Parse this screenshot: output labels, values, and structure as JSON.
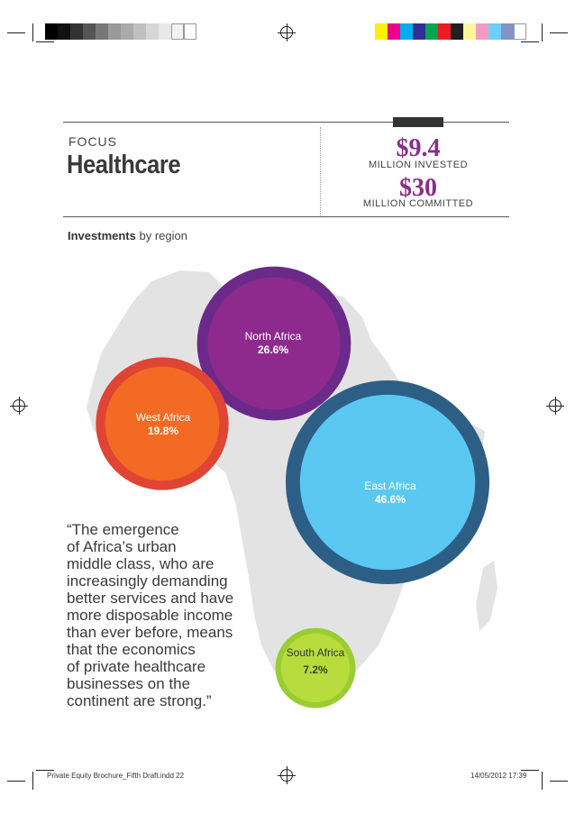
{
  "header": {
    "eyebrow": "FOCUS",
    "title": "Healthcare",
    "invested_value": "$9.4",
    "invested_label": "MILLION INVESTED",
    "committed_value": "$30",
    "committed_label": "MILLION COMMITTED"
  },
  "section": {
    "subhead_bold": "Investments",
    "subhead_rest": " by region"
  },
  "chart_data": {
    "type": "bubble",
    "title": "Investments by region",
    "regions": [
      {
        "name": "North Africa",
        "label": "26.6%",
        "value": 26.6,
        "outer_color": "#6b2a8a",
        "inner_color": "#8e2a8e"
      },
      {
        "name": "West Africa",
        "label": "19.8%",
        "value": 19.8,
        "outer_color": "#e04433",
        "inner_color": "#f26a24"
      },
      {
        "name": "East Africa",
        "label": "46.6%",
        "value": 46.6,
        "outer_color": "#2d5f86",
        "inner_color": "#5bc8f2"
      },
      {
        "name": "South Africa",
        "label": "7.2%",
        "value": 7.2,
        "outer_color": "#9acd32",
        "inner_color": "#b8dc3c"
      }
    ]
  },
  "quote": {
    "lines": [
      "“The emergence",
      "of Africa’s urban",
      "middle class, who are",
      "increasingly demanding",
      "better services and have",
      "more disposable income",
      "than ever before, means",
      "that the economics",
      "of private healthcare",
      "businesses on the",
      "continent are strong.”"
    ]
  },
  "footer": {
    "file": "Private Equity Brochure_Fifth Draft.indd   22",
    "date": "14/05/2012   17:39"
  },
  "colors": {
    "accent": "#8c2d8a",
    "map": "#e3e3e3"
  }
}
